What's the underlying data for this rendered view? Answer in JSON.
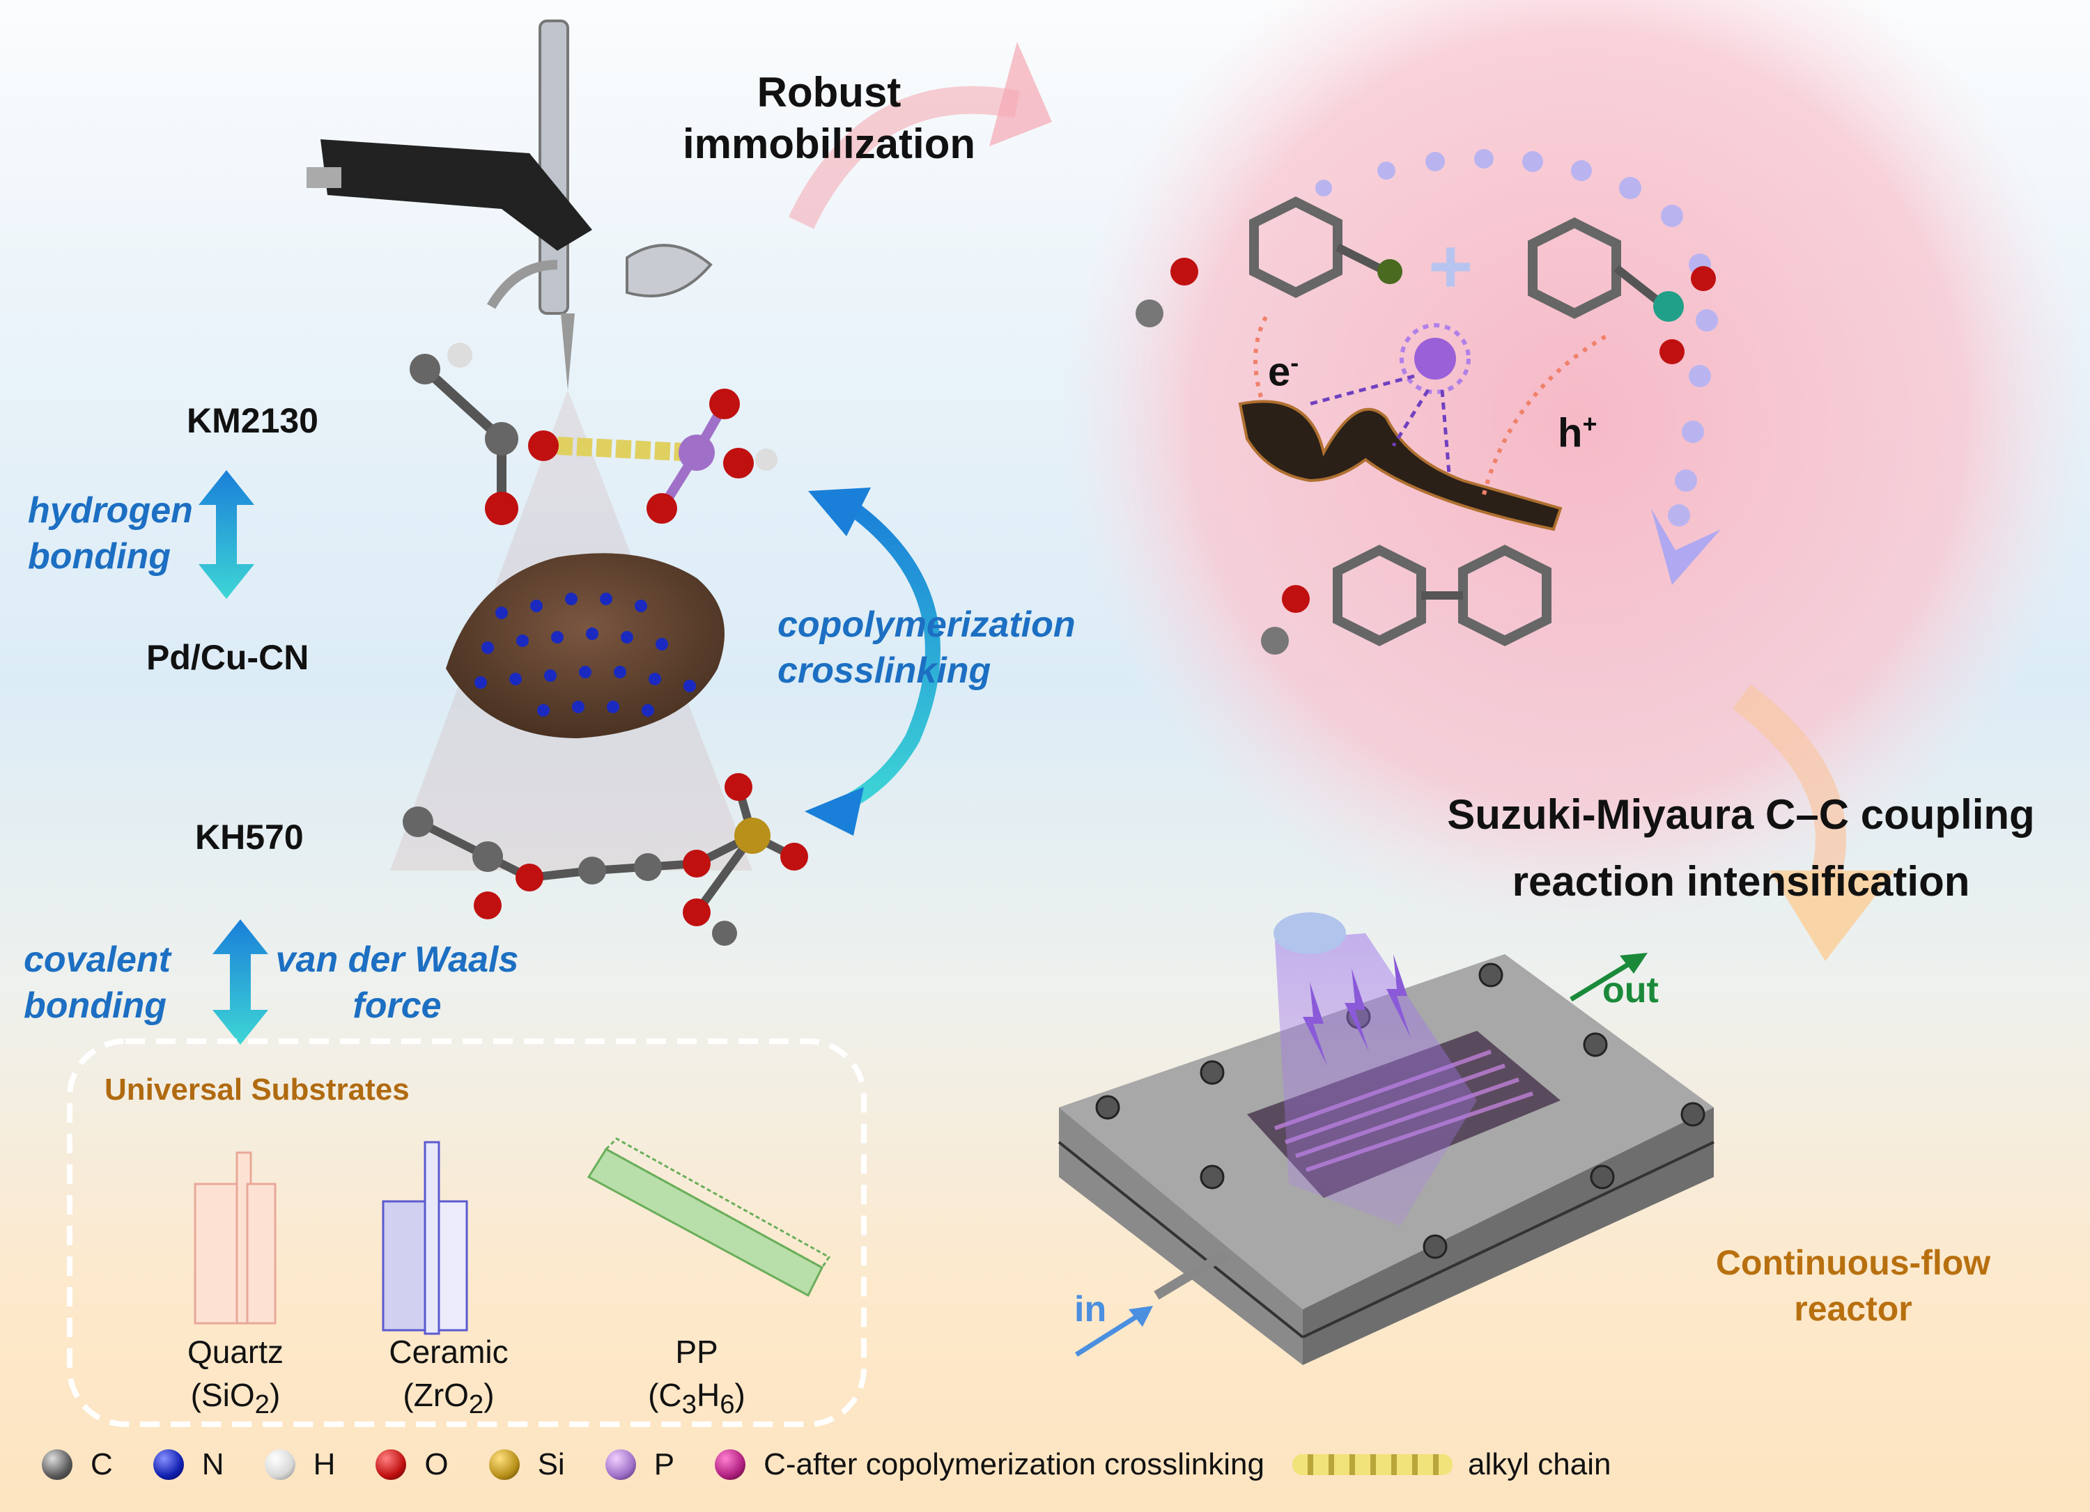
{
  "top_label": {
    "line1": "Robust",
    "line2": "immobilization"
  },
  "left": {
    "km2130": "KM2130",
    "hydrogen_bonding": {
      "line1": "hydrogen",
      "line2": "bonding"
    },
    "pdcu_cn": "Pd/Cu-CN",
    "kh570": "KH570",
    "copolymerization": {
      "line1": "copolymerization",
      "line2": "crosslinking"
    },
    "covalent_bonding": {
      "line1": "covalent",
      "line2": "bonding"
    },
    "vdw": {
      "line1": "van der Waals",
      "line2": "force"
    }
  },
  "substrates": {
    "title": "Universal Substrates",
    "items": [
      {
        "name": "Quartz",
        "formula_pre": "(SiO",
        "formula_sub": "2",
        "formula_post": ")"
      },
      {
        "name": "Ceramic",
        "formula_pre": "(ZrO",
        "formula_sub": "2",
        "formula_post": ")"
      },
      {
        "name": "PP",
        "formula_pre": "(C",
        "formula_sub": "3",
        "formula_mid": "H",
        "formula_sub2": "6",
        "formula_post": ")"
      }
    ]
  },
  "reaction": {
    "electron": "e",
    "electron_sup": "-",
    "hole": "h",
    "hole_sup": "+",
    "plus": "+",
    "title": {
      "line1": "Suzuki-Miyaura C–C coupling",
      "line2": "reaction intensification"
    }
  },
  "reactor": {
    "label": {
      "line1": "Continuous-flow",
      "line2": "reactor"
    },
    "in": "in",
    "out": "out"
  },
  "legend": [
    {
      "label": "C",
      "color": "#5a5a5a"
    },
    {
      "label": "N",
      "color": "#1020b0"
    },
    {
      "label": "H",
      "color": "#d8d8d8"
    },
    {
      "label": "O",
      "color": "#c01010"
    },
    {
      "label": "Si",
      "color": "#b8901a"
    },
    {
      "label": "P",
      "color": "#a070c8"
    },
    {
      "label": "C-after copolymerization crosslinking",
      "color": "#b02080"
    },
    {
      "label": "alkyl chain",
      "color": "#e8d860"
    }
  ],
  "colors": {
    "blue_text": "#1c6fc2",
    "orange_text": "#b8700f",
    "in_arrow": "#4a8fe0",
    "out_arrow": "#1a8a3a"
  }
}
